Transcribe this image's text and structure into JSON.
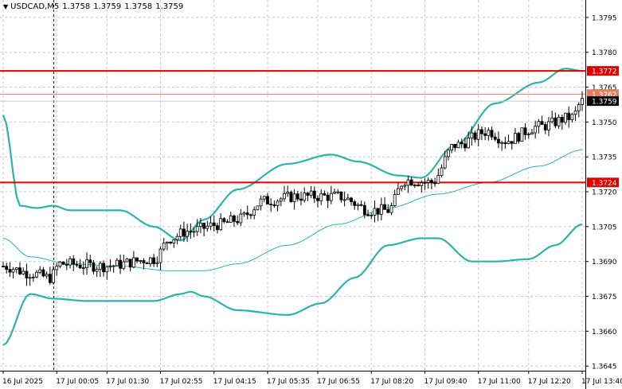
{
  "header": {
    "symbol": "USDCAD,M5",
    "open": "1.3758",
    "high": "1.3759",
    "low": "1.3758",
    "close": "1.3759"
  },
  "colors": {
    "background": "#ffffff",
    "grid": "#c8c8c8",
    "candle": "#000000",
    "bands": "#2ab5a5",
    "level_line": "#e00000",
    "price_line": "#e08060",
    "current_price_line": "#c8c8c8"
  },
  "chart_data": {
    "type": "candlestick",
    "symbol": "USDCAD",
    "timeframe": "M5",
    "ylim": [
      1.3643,
      1.38025
    ],
    "y_ticks": [
      "1.3795",
      "1.3780",
      "1.3765",
      "1.3750",
      "1.3735",
      "1.3720",
      "1.3705",
      "1.3690",
      "1.3675",
      "1.3660",
      "1.3645"
    ],
    "x_ticks": [
      "16 Jul 2025",
      "17 Jul 00:05",
      "17 Jul 01:30",
      "17 Jul 02:55",
      "17 Jul 04:15",
      "17 Jul 05:35",
      "17 Jul 06:55",
      "17 Jul 08:20",
      "17 Jul 09:40",
      "17 Jul 11:00",
      "17 Jul 12:20",
      "17 Jul 13:40"
    ],
    "n_bars": 174,
    "horizontal_levels": [
      {
        "label": "1.3772",
        "value": 1.3772
      },
      {
        "label": "1.3724",
        "value": 1.3724
      }
    ],
    "price_labels": [
      {
        "label": "1.3762",
        "value": 1.3762
      },
      {
        "label": "1.3759",
        "value": 1.3759
      }
    ],
    "period_separator_bar": 15,
    "close_anchors": [
      [
        0,
        1.3688
      ],
      [
        8,
        1.3685
      ],
      [
        14,
        1.3683
      ],
      [
        17,
        1.3689
      ],
      [
        30,
        1.3688
      ],
      [
        45,
        1.3691
      ],
      [
        50,
        1.37
      ],
      [
        55,
        1.3703
      ],
      [
        65,
        1.3706
      ],
      [
        70,
        1.3708
      ],
      [
        78,
        1.3716
      ],
      [
        88,
        1.3718
      ],
      [
        100,
        1.3718
      ],
      [
        110,
        1.3712
      ],
      [
        115,
        1.3712
      ],
      [
        120,
        1.3725
      ],
      [
        128,
        1.3724
      ],
      [
        135,
        1.374
      ],
      [
        145,
        1.3746
      ],
      [
        150,
        1.3742
      ],
      [
        160,
        1.3748
      ],
      [
        170,
        1.3752
      ],
      [
        173,
        1.3759
      ]
    ],
    "bands_upper": [
      [
        0,
        1.3753
      ],
      [
        5,
        1.3714
      ],
      [
        10,
        1.3713
      ],
      [
        15,
        1.3714
      ],
      [
        20,
        1.3712
      ],
      [
        35,
        1.3712
      ],
      [
        45,
        1.3705
      ],
      [
        53,
        1.3699
      ],
      [
        60,
        1.3708
      ],
      [
        70,
        1.3721
      ],
      [
        85,
        1.3732
      ],
      [
        98,
        1.3736
      ],
      [
        106,
        1.3733
      ],
      [
        118,
        1.3727
      ],
      [
        125,
        1.3726
      ],
      [
        135,
        1.374
      ],
      [
        147,
        1.3758
      ],
      [
        160,
        1.3767
      ],
      [
        168,
        1.3773
      ],
      [
        173,
        1.3772
      ]
    ],
    "bands_middle": [
      [
        0,
        1.37
      ],
      [
        8,
        1.3692
      ],
      [
        20,
        1.3689
      ],
      [
        35,
        1.3688
      ],
      [
        50,
        1.3686
      ],
      [
        60,
        1.3686
      ],
      [
        70,
        1.3689
      ],
      [
        85,
        1.3697
      ],
      [
        100,
        1.3706
      ],
      [
        115,
        1.3713
      ],
      [
        130,
        1.3719
      ],
      [
        145,
        1.3724
      ],
      [
        160,
        1.3731
      ],
      [
        173,
        1.3738
      ]
    ],
    "bands_lower": [
      [
        0,
        1.3654
      ],
      [
        8,
        1.3676
      ],
      [
        15,
        1.3674
      ],
      [
        25,
        1.3673
      ],
      [
        45,
        1.3673
      ],
      [
        53,
        1.3676
      ],
      [
        56,
        1.3677
      ],
      [
        60,
        1.3675
      ],
      [
        70,
        1.3669
      ],
      [
        85,
        1.3667
      ],
      [
        95,
        1.3672
      ],
      [
        105,
        1.3683
      ],
      [
        115,
        1.3697
      ],
      [
        125,
        1.37
      ],
      [
        130,
        1.37
      ],
      [
        140,
        1.369
      ],
      [
        147,
        1.369
      ],
      [
        157,
        1.3691
      ],
      [
        165,
        1.3697
      ],
      [
        173,
        1.3706
      ]
    ]
  }
}
